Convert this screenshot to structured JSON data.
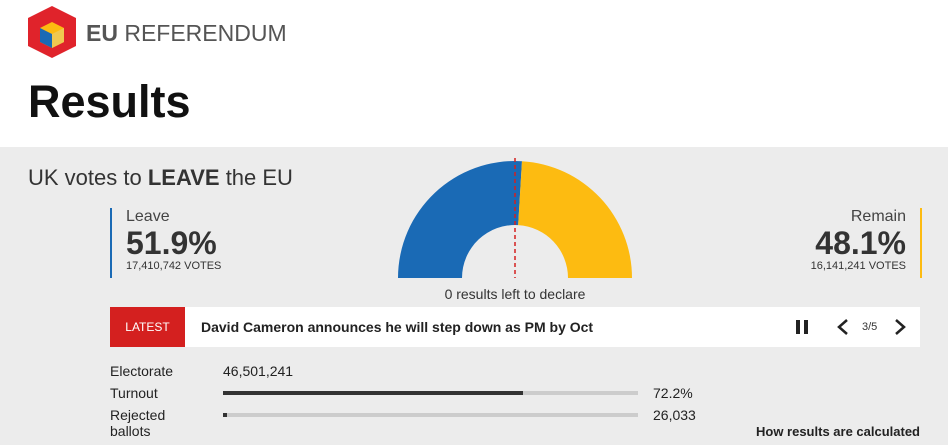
{
  "header": {
    "brand_bold": "EU",
    "brand": "REFERENDUM",
    "title": "Results"
  },
  "headline": {
    "before": "UK votes to",
    "emphasis": "LEAVE",
    "after": "the EU"
  },
  "leave": {
    "name": "Leave",
    "value": 51.9,
    "value_label": "51.9%",
    "votes": "17,410,742 VOTES",
    "color": "#1a6ab5"
  },
  "remain": {
    "name": "Remain",
    "value": 48.1,
    "value_label": "48.1%",
    "votes": "16,141,241 VOTES",
    "color": "#fdbb11"
  },
  "declare_note": "0 results left to declare",
  "ticker": {
    "tag": "LATEST",
    "text": "David Cameron announces he will step down as PM by Oct",
    "page": "3/5"
  },
  "stats": {
    "electorate": {
      "label": "Electorate",
      "value": 46501241,
      "value_label": "46,501,241"
    },
    "turnout": {
      "label": "Turnout",
      "value": 72.2,
      "value_label": "72.2%"
    },
    "rejected": {
      "label": "Rejected ballots",
      "value": 26033,
      "value_label": "26,033"
    }
  },
  "footer_link": "How results are calculated"
}
